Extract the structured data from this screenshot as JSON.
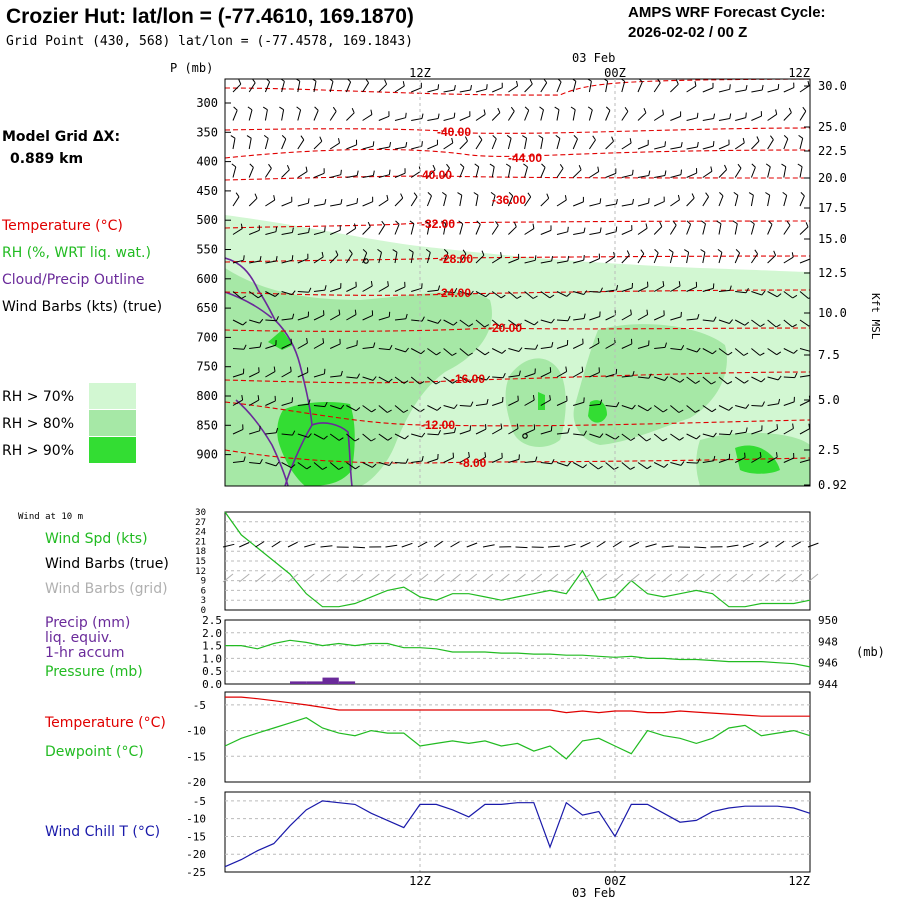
{
  "header": {
    "title": "Crozier Hut:  lat/lon = (-77.4610, 169.1870)",
    "subtitle": "Grid Point (430, 568) lat/lon = (-77.4578, 169.1843)",
    "cycle_label": "AMPS WRF Forecast Cycle:",
    "cycle_value": "2026-02-02 / 00  Z",
    "grid_label": "Model Grid ΔX:",
    "grid_value": "0.889 km"
  },
  "colors": {
    "temperature": "#e00000",
    "rh": "#22bb22",
    "cloud": "#6a2a9a",
    "wind": "#000000",
    "wind_grid": "#b0b0b0",
    "wind_speed": "#22bb22",
    "precip": "#6a2a9a",
    "pressure": "#22bb22",
    "dewpoint": "#22bb22",
    "windchill": "#1a1aaa",
    "rh70": "#d2f7d2",
    "rh80": "#a6e8a6",
    "rh90": "#33dd33"
  },
  "chart_data": [
    {
      "type": "heatmap",
      "name": "time-height cross section",
      "time_labels_top": [
        "12Z",
        "00Z",
        "12Z"
      ],
      "time_labels_bottom": [
        "12Z",
        "00Z",
        "12Z"
      ],
      "date_label": "03 Feb",
      "time_hours": [
        0,
        36
      ],
      "tick_hours": [
        12,
        24,
        36
      ],
      "gridline_hours": [
        12,
        24
      ],
      "ylabel": "P (mb)",
      "right_label": "Kft MSL",
      "pressure_ticks": [
        "300",
        "350",
        "400",
        "450",
        "500",
        "550",
        "600",
        "650",
        "700",
        "750",
        "800",
        "850",
        "900"
      ],
      "kft_ticks": [
        "30.0",
        "25.0",
        "22.5",
        "20.0",
        "17.5",
        "15.0",
        "12.5",
        "10.0",
        "7.5",
        "5.0",
        "2.5",
        "0.92"
      ],
      "legend": {
        "temperature": "Temperature (°C)",
        "rh": "RH (%, WRT liq. wat.)",
        "cloud": "Cloud/Precip Outline",
        "wind": "Wind Barbs (kts) (true)",
        "rh70": "RH > 70%",
        "rh80": "RH > 80%",
        "rh90": "RH > 90%"
      },
      "temperature_labels": [
        "-40.00",
        "-44.00",
        "-40.00",
        "-36.00",
        "-32.00",
        "-28.00",
        "-24.00",
        "-20.00",
        "-16.00",
        "-12.00",
        "-8.00"
      ]
    },
    {
      "type": "line",
      "name": "wind at 10 m",
      "title": "Wind at 10 m",
      "legend": {
        "speed": "Wind Spd (kts)",
        "barbs_true": "Wind Barbs (true)",
        "barbs_grid": "Wind Barbs (grid)"
      },
      "ylim": [
        0,
        30
      ],
      "yticks": [
        "30",
        "27",
        "24",
        "21",
        "18",
        "15",
        "12",
        "9",
        "6",
        "3",
        "0"
      ],
      "x": [
        0,
        1,
        2,
        3,
        4,
        5,
        6,
        7,
        8,
        9,
        10,
        11,
        12,
        13,
        14,
        15,
        16,
        17,
        18,
        19,
        20,
        21,
        22,
        23,
        24,
        25,
        26,
        27,
        28,
        29,
        30,
        31,
        32,
        33,
        34,
        35,
        36
      ],
      "values": [
        30,
        23,
        19,
        15,
        11,
        5,
        1,
        1,
        2,
        4,
        6,
        7,
        4,
        3,
        5,
        5,
        4,
        3,
        4,
        5,
        6,
        5,
        12,
        3,
        4,
        9,
        5,
        4,
        5,
        6,
        5,
        1,
        1,
        2,
        2,
        2,
        3
      ]
    },
    {
      "type": "line",
      "name": "precip and pressure",
      "legend": {
        "precip": "Precip (mm)",
        "liq": "liq. equiv.",
        "accum": "1-hr accum",
        "pressure": "Pressure (mb)"
      },
      "precip_yticks": [
        "2.5",
        "2.0",
        "1.5",
        "1.0",
        "0.5",
        "0.0"
      ],
      "pressure_yticks": [
        "950",
        "948",
        "946",
        "944"
      ],
      "pressure_unit": "(mb)",
      "pressure_ylim": [
        944,
        950
      ],
      "precip_ylim": [
        0,
        2.5
      ],
      "x": [
        0,
        1,
        2,
        3,
        4,
        5,
        6,
        7,
        8,
        9,
        10,
        11,
        12,
        13,
        14,
        15,
        16,
        17,
        18,
        19,
        20,
        21,
        22,
        23,
        24,
        25,
        26,
        27,
        28,
        29,
        30,
        31,
        32,
        33,
        34,
        35,
        36
      ],
      "pressure": [
        947.6,
        947.6,
        947.3,
        947.8,
        948.1,
        947.9,
        947.6,
        947.8,
        947.6,
        947.8,
        947.8,
        947.4,
        947.4,
        947.3,
        947.0,
        947.0,
        947.0,
        946.9,
        946.9,
        946.8,
        946.8,
        946.7,
        946.7,
        946.6,
        946.5,
        946.6,
        946.4,
        946.4,
        946.3,
        946.3,
        946.2,
        946.1,
        946.1,
        946.1,
        946.0,
        945.9,
        945.6
      ],
      "precip_bars": [
        {
          "hour": 4.5,
          "value": 0.1
        },
        {
          "hour": 5.5,
          "value": 0.1
        },
        {
          "hour": 6.5,
          "value": 0.25
        },
        {
          "hour": 7.5,
          "value": 0.1
        }
      ]
    },
    {
      "type": "line",
      "name": "temperature and dewpoint",
      "legend": {
        "temperature": "Temperature (°C)",
        "dewpoint": "Dewpoint (°C)"
      },
      "ylim": [
        -20,
        -2.5
      ],
      "yticks": [
        "-5",
        "-10",
        "-15",
        "-20"
      ],
      "ytick_values": [
        -5,
        -10,
        -15,
        -20
      ],
      "x": [
        0,
        1,
        2,
        3,
        4,
        5,
        6,
        7,
        8,
        9,
        10,
        11,
        12,
        13,
        14,
        15,
        16,
        17,
        18,
        19,
        20,
        21,
        22,
        23,
        24,
        25,
        26,
        27,
        28,
        29,
        30,
        31,
        32,
        33,
        34,
        35,
        36
      ],
      "temperature": [
        -3.5,
        -3.5,
        -3.8,
        -4.2,
        -4.6,
        -5.0,
        -5.5,
        -6.0,
        -6.0,
        -6.0,
        -6.0,
        -6.0,
        -6.0,
        -6.0,
        -6.0,
        -6.0,
        -6.0,
        -6.0,
        -6.0,
        -6.0,
        -6.0,
        -6.5,
        -6.2,
        -6.5,
        -6.2,
        -6.2,
        -6.5,
        -6.5,
        -6.2,
        -6.4,
        -6.6,
        -6.8,
        -7.0,
        -7.2,
        -7.2,
        -7.2,
        -7.2
      ],
      "dewpoint": [
        -13.0,
        -11.5,
        -10.5,
        -9.5,
        -8.5,
        -7.5,
        -9.5,
        -10.5,
        -11.0,
        -10.0,
        -10.5,
        -10.5,
        -13.0,
        -12.5,
        -12.0,
        -12.5,
        -12.0,
        -13.0,
        -12.5,
        -14.0,
        -13.0,
        -15.5,
        -12.0,
        -11.5,
        -13.0,
        -14.5,
        -10.0,
        -11.0,
        -11.5,
        -12.5,
        -11.5,
        -9.5,
        -9.0,
        -11.0,
        -10.5,
        -10.0,
        -11.0
      ]
    },
    {
      "type": "line",
      "name": "wind chill",
      "legend": {
        "windchill": "Wind Chill T (°C)"
      },
      "ylim": [
        -25,
        -2.5
      ],
      "yticks": [
        "-5",
        "-10",
        "-15",
        "-20",
        "-25"
      ],
      "ytick_values": [
        -5,
        -10,
        -15,
        -20,
        -25
      ],
      "x": [
        0,
        1,
        2,
        3,
        4,
        5,
        6,
        7,
        8,
        9,
        10,
        11,
        12,
        13,
        14,
        15,
        16,
        17,
        18,
        19,
        20,
        21,
        22,
        23,
        24,
        25,
        26,
        27,
        28,
        29,
        30,
        31,
        32,
        33,
        34,
        35,
        36
      ],
      "values": [
        -23.5,
        -21.5,
        -19.0,
        -17.0,
        -12.0,
        -7.5,
        -5.0,
        -5.5,
        -6.0,
        -8.5,
        -10.5,
        -12.5,
        -6.0,
        -6.0,
        -7.5,
        -9.5,
        -6.0,
        -6.0,
        -5.5,
        -5.5,
        -18.0,
        -5.5,
        -9.0,
        -8.0,
        -15.0,
        -6.0,
        -6.0,
        -8.5,
        -11.0,
        -10.5,
        -8.0,
        -7.0,
        -6.5,
        -6.5,
        -6.5,
        -7.0,
        -8.5
      ]
    }
  ]
}
